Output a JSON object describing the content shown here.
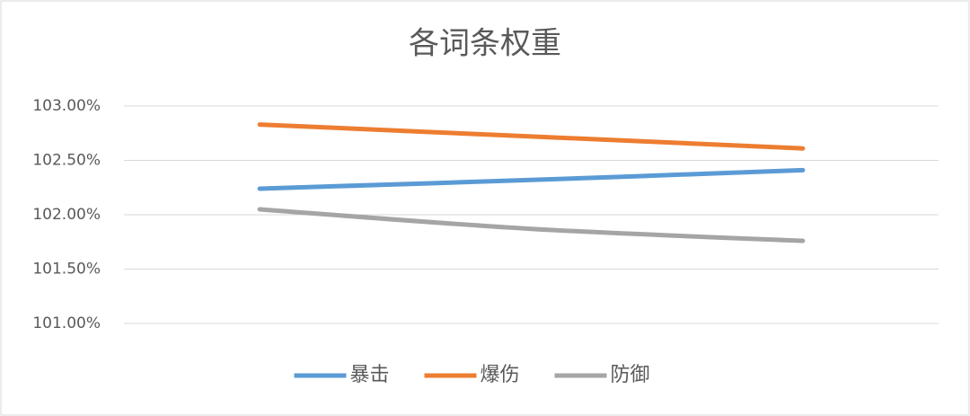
{
  "chart_data": {
    "type": "line",
    "title": "各词条权重",
    "categories": [
      null,
      null,
      null
    ],
    "series": [
      {
        "name": "暴击",
        "color": "#5b9bd5",
        "values": [
          102.24,
          102.32,
          102.41
        ]
      },
      {
        "name": "爆伤",
        "color": "#ed7d31",
        "values": [
          102.83,
          102.72,
          102.61
        ]
      },
      {
        "name": "防御",
        "color": "#a5a5a5",
        "values": [
          102.05,
          101.87,
          101.76
        ]
      }
    ],
    "ylim": [
      101,
      103
    ],
    "yticks": [
      {
        "value": 101,
        "label": "101.00%"
      },
      {
        "value": 101.5,
        "label": "101.50%"
      },
      {
        "value": 102,
        "label": "102.00%"
      },
      {
        "value": 102.5,
        "label": "102.50%"
      },
      {
        "value": 103,
        "label": "103.00%"
      }
    ],
    "grid": true,
    "legend": "bottom",
    "smooth": true
  }
}
